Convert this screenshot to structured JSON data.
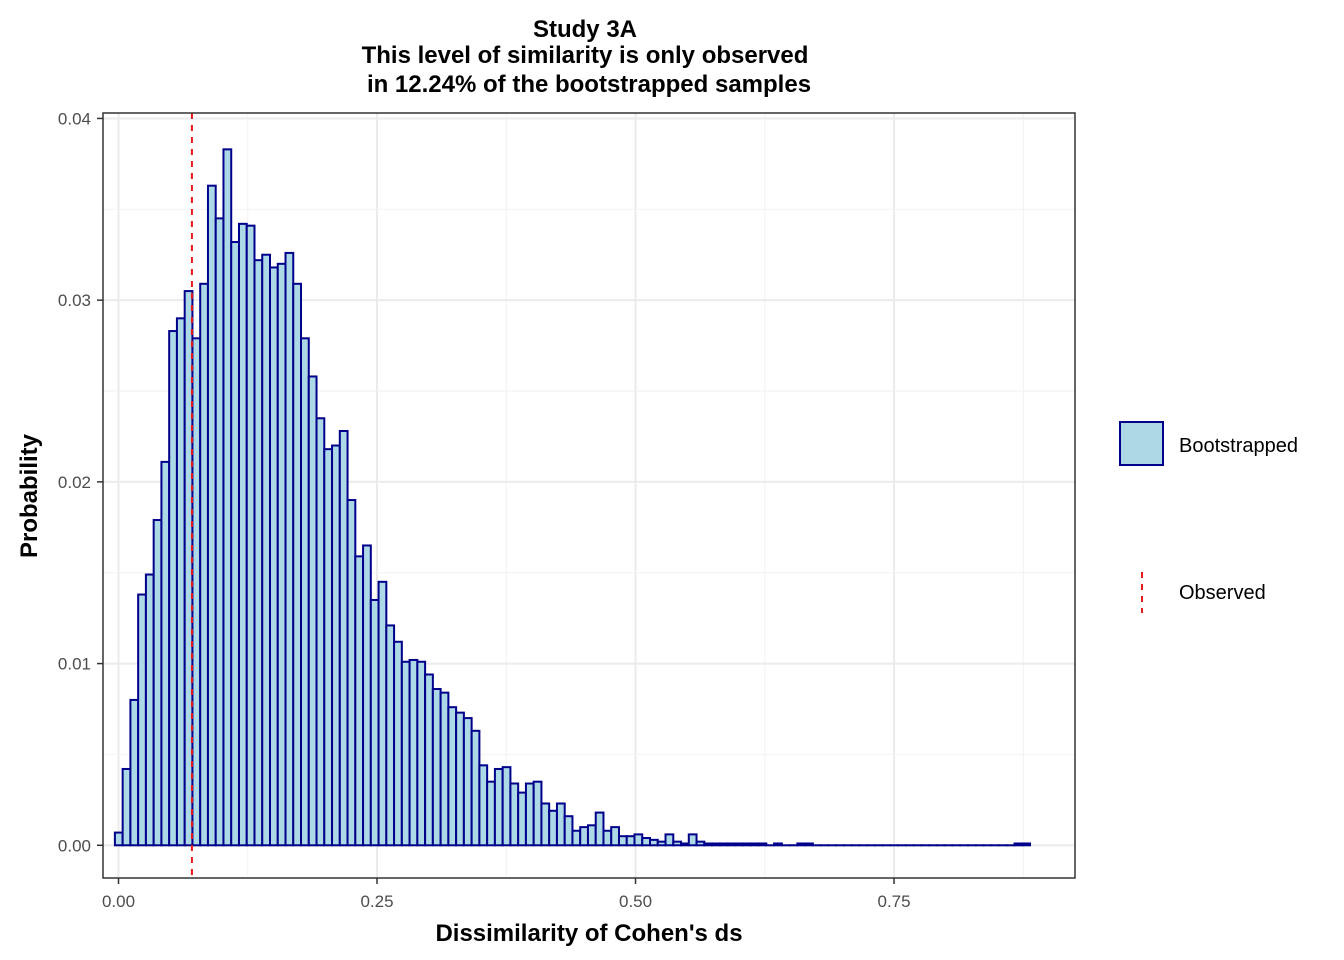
{
  "chart_data": {
    "type": "bar",
    "title_lines": [
      "Study 3A",
      "This level of similarity is only observed",
      "in 12.24% of the bootstrapped samples"
    ],
    "xlabel": "Dissimilarity of Cohen's ds",
    "ylabel": "Probability",
    "xlim": [
      -0.015,
      0.925
    ],
    "ylim": [
      -0.0018,
      0.0403
    ],
    "x_ticks": [
      0.0,
      0.25,
      0.5,
      0.75
    ],
    "x_tick_labels": [
      "0.00",
      "0.25",
      "0.50",
      "0.75"
    ],
    "y_ticks": [
      0.0,
      0.01,
      0.02,
      0.03,
      0.04
    ],
    "y_tick_labels": [
      "0.00",
      "0.01",
      "0.02",
      "0.03",
      "0.04"
    ],
    "grid": true,
    "bin_start": -0.0035,
    "bin_width": 0.0075,
    "series": [
      {
        "name": "Bootstrapped",
        "fill": "#add8e6",
        "stroke": "#00008b",
        "values": [
          0.0007,
          0.0042,
          0.008,
          0.0138,
          0.0149,
          0.0179,
          0.0211,
          0.0283,
          0.029,
          0.0305,
          0.0279,
          0.0309,
          0.0363,
          0.0345,
          0.0383,
          0.0332,
          0.0342,
          0.0341,
          0.0322,
          0.0325,
          0.0318,
          0.032,
          0.0326,
          0.0309,
          0.0279,
          0.0258,
          0.0235,
          0.0218,
          0.022,
          0.0228,
          0.019,
          0.0159,
          0.0165,
          0.0135,
          0.0145,
          0.0121,
          0.0112,
          0.0101,
          0.0102,
          0.0101,
          0.0094,
          0.0086,
          0.0084,
          0.0076,
          0.0073,
          0.007,
          0.0063,
          0.0044,
          0.0035,
          0.0042,
          0.0043,
          0.0034,
          0.0029,
          0.0034,
          0.0035,
          0.0023,
          0.0019,
          0.0023,
          0.0016,
          0.0008,
          0.001,
          0.0011,
          0.0018,
          0.0008,
          0.001,
          0.0005,
          0.0005,
          0.0006,
          0.0004,
          0.0003,
          0.0002,
          0.0006,
          0.0002,
          0.0001,
          0.0006,
          0.0002,
          0.0001,
          0.0001,
          0.0001,
          0.0001,
          0.0001,
          0.0001,
          0.0001,
          0.0001,
          0.0,
          0.0001,
          0.0,
          0.0,
          0.0001,
          0.0001,
          0.0,
          0.0,
          0.0,
          0.0,
          0.0,
          0.0,
          0.0,
          0.0,
          0.0,
          0.0,
          0.0,
          0.0,
          0.0,
          0.0,
          0.0,
          0.0,
          0.0,
          0.0,
          0.0,
          0.0,
          0.0,
          0.0,
          0.0,
          0.0,
          0.0,
          0.0,
          0.0001,
          0.0001
        ]
      }
    ],
    "observed": {
      "name": "Observed",
      "x": 0.071,
      "color": "#e41a1c",
      "style": "dashed"
    },
    "legend": {
      "position": "right",
      "entries": [
        "Bootstrapped",
        "Observed"
      ]
    }
  }
}
